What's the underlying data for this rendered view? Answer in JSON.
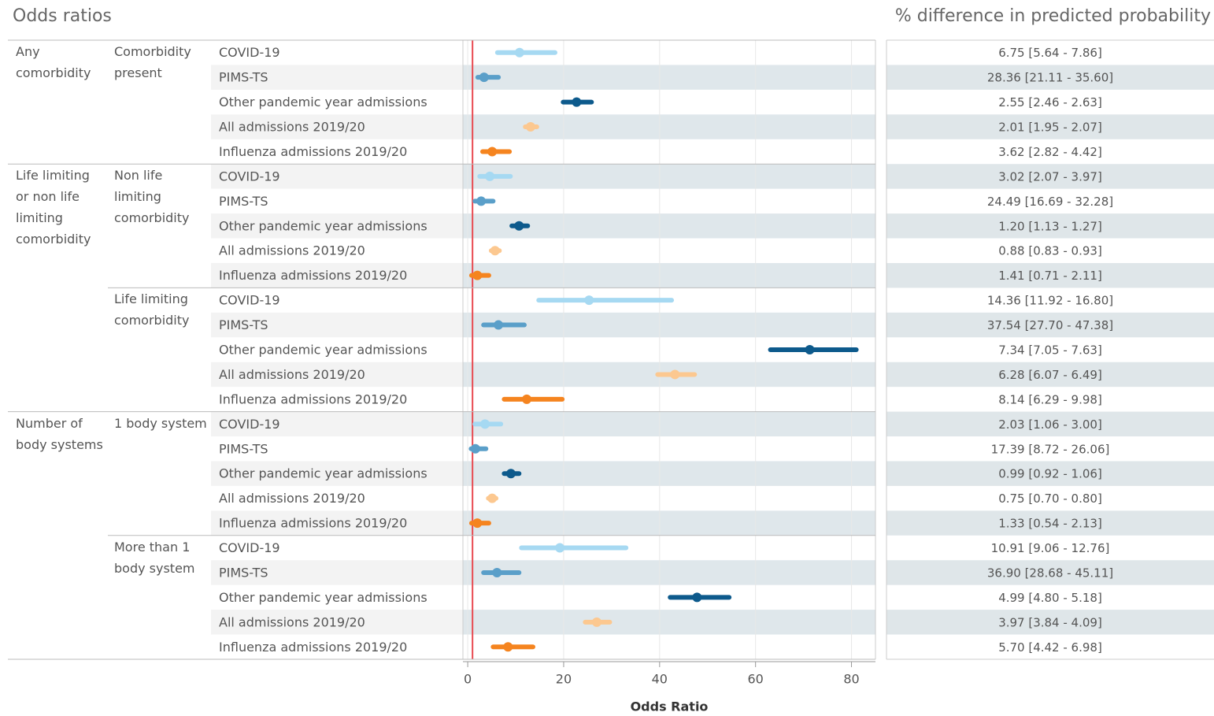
{
  "chart_data": {
    "type": "forest",
    "title": "Odds ratios",
    "right_title": "% difference in predicted probability",
    "x_label": "Odds Ratio",
    "xlim": [
      -1,
      85
    ],
    "xticks": [
      0,
      20,
      40,
      60,
      80
    ],
    "reference_line": 1,
    "grid": true,
    "outcomes": [
      {
        "name": "COVID-19",
        "color": "#a6d9f2"
      },
      {
        "name": "PIMS-TS",
        "color": "#5a9fc9"
      },
      {
        "name": "Other pandemic year admissions",
        "color": "#0d5a8c"
      },
      {
        "name": "All admissions 2019/20",
        "color": "#fcc890"
      },
      {
        "name": "Influenza admissions 2019/20",
        "color": "#f5841f"
      }
    ],
    "groups": [
      {
        "label": "Any comorbidity",
        "subgroups": [
          {
            "label": "Comorbidity present",
            "estimates": [
              10.8,
              3.4,
              22.7,
              13.1,
              5.1
            ],
            "lower": [
              6.2,
              2.1,
              19.9,
              12.0,
              3.1
            ],
            "upper": [
              18.2,
              6.4,
              25.8,
              14.4,
              8.7
            ],
            "pct_labels": [
              "6.75 [5.64 - 7.86]",
              "28.36 [21.11 - 35.60]",
              "2.55 [2.46 - 2.63]",
              "2.01 [1.95 - 2.07]",
              "3.62 [2.82 - 4.42]"
            ]
          }
        ]
      },
      {
        "label": "Life limiting or non life limiting comorbidity",
        "subgroups": [
          {
            "label": "Non life limiting comorbidity",
            "estimates": [
              4.6,
              2.8,
              10.7,
              5.7,
              2.0
            ],
            "lower": [
              2.5,
              1.5,
              9.2,
              4.9,
              0.8
            ],
            "upper": [
              8.9,
              5.3,
              12.5,
              6.6,
              4.4
            ],
            "pct_labels": [
              "3.02 [2.07 - 3.97]",
              "24.49 [16.69 - 32.28]",
              "1.20 [1.13 - 1.27]",
              "0.88 [0.83 - 0.93]",
              "1.41 [0.71 - 2.11]"
            ]
          },
          {
            "label": "Life limiting comorbidity",
            "estimates": [
              25.3,
              6.4,
              71.3,
              43.2,
              12.3
            ],
            "lower": [
              14.8,
              3.3,
              63.1,
              39.6,
              7.6
            ],
            "upper": [
              42.5,
              11.8,
              81.0,
              47.3,
              19.7
            ],
            "pct_labels": [
              "14.36 [11.92 - 16.80]",
              "37.54 [27.70 - 47.38]",
              "7.34 [7.05 - 7.63]",
              "6.28 [6.07 - 6.49]",
              "8.14 [6.29 - 9.98]"
            ]
          }
        ]
      },
      {
        "label": "Number of body systems",
        "subgroups": [
          {
            "label": "1 body system",
            "estimates": [
              3.6,
              1.6,
              9.0,
              5.1,
              2.0
            ],
            "lower": [
              1.5,
              0.7,
              7.6,
              4.3,
              0.8
            ],
            "upper": [
              6.9,
              3.8,
              10.7,
              5.9,
              4.4
            ],
            "pct_labels": [
              "2.03 [1.06 - 3.00]",
              "17.39 [8.72 - 26.06]",
              "0.99 [0.92 - 1.06]",
              "0.75 [0.70 - 0.80]",
              "1.33 [0.54 - 2.13]"
            ]
          },
          {
            "label": "More than 1 body system",
            "estimates": [
              19.2,
              6.1,
              47.8,
              26.9,
              8.4
            ],
            "lower": [
              11.2,
              3.3,
              42.2,
              24.5,
              5.3
            ],
            "upper": [
              33.0,
              10.7,
              54.5,
              29.6,
              13.6
            ],
            "pct_labels": [
              "10.91 [9.06 - 12.76]",
              "36.90 [28.68 - 45.11]",
              "4.99 [4.80 - 5.18]",
              "3.97 [3.84 - 4.09]",
              "5.70 [4.42 - 6.98]"
            ]
          }
        ]
      }
    ]
  }
}
